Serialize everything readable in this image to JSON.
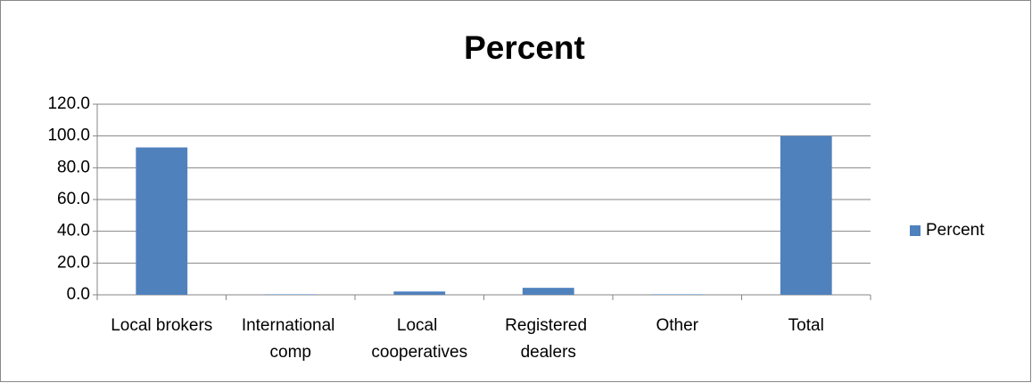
{
  "chart_data": {
    "type": "bar",
    "title": "Percent",
    "categories": [
      "Local brokers",
      "International comp",
      "Local cooperatives",
      "Registered dealers",
      "Other",
      "Total"
    ],
    "series": [
      {
        "name": "Percent",
        "color": "#4f81bd",
        "values": [
          92.8,
          0.3,
          2.1,
          4.4,
          0.3,
          100
        ]
      }
    ],
    "ylim": [
      0,
      120
    ],
    "yticks": [
      {
        "value": 0,
        "label": "0.0"
      },
      {
        "value": 20,
        "label": "20.0"
      },
      {
        "value": 40,
        "label": "40.0"
      },
      {
        "value": 60,
        "label": "60.0"
      },
      {
        "value": 80,
        "label": "80.0"
      },
      {
        "value": 100,
        "label": "100.0"
      },
      {
        "value": 120,
        "label": "120.0"
      }
    ],
    "grid": true,
    "legend": "right"
  }
}
